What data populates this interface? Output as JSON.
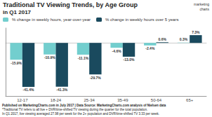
{
  "chart_data": {
    "type": "bar",
    "title": "Traditional TV Viewing Trends, by Age Group",
    "subtitle": "in Q1 2017",
    "categories": [
      "12-17",
      "18-24",
      "25-34",
      "35-49",
      "50-64",
      "65+"
    ],
    "series": [
      {
        "name": "% change in weekly hours, year-over-year",
        "color": "#72cece",
        "values": [
          -15.9,
          -10.9,
          -11.1,
          -4.6,
          -2.4,
          0.3
        ],
        "value_labels": [
          "-15.9%",
          "-10.9%",
          "-11.1%",
          "-4.6%",
          "-2.4%",
          "0.3%"
        ]
      },
      {
        "name": "% change in weekly hours over 5 years",
        "color": "#1a4a5e",
        "values": [
          -41.4,
          -41.3,
          -29.7,
          -13.0,
          0.6,
          7.3
        ],
        "value_labels": [
          "-41.4%",
          "-41.3%",
          "-29.7%",
          "-13.0%",
          "0.6%",
          "7.3%"
        ]
      }
    ],
    "ylim": [
      -50,
      14
    ],
    "yticks": [],
    "grid": false,
    "legend": "upper left",
    "data_labels": true,
    "tick_labels": "x",
    "annotations": [
      "marketing",
      "charts",
      "Published on MarketingCharts.com in July 2017 | Data Source: MarketingCharts.com analysis of Nielsen data",
      "*Traditional TV refers to all live + DVR/time-shifted TV viewing during the quarter for the total population.",
      "In Q1 2017, live viewing averaged 27.98 per week for the 2+ population and DVR/time-shifted TV 3.33 per week."
    ]
  }
}
